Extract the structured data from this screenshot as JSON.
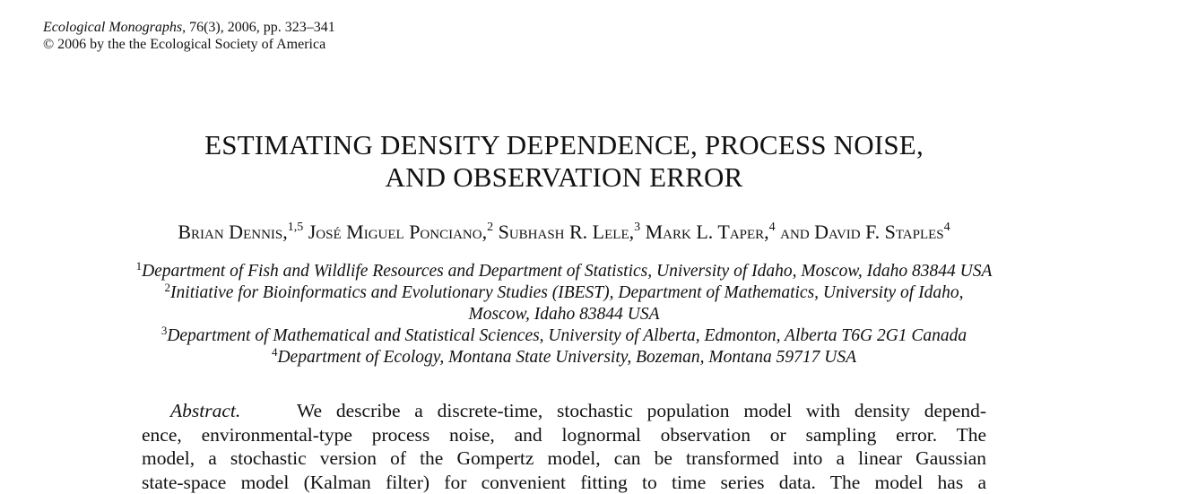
{
  "header": {
    "journal_name": "Ecological Monographs",
    "citation": ", 76(3), 2006, pp. 323–341",
    "copyright": "© 2006 by the the Ecological Society of America"
  },
  "title": {
    "line1": "ESTIMATING DENSITY DEPENDENCE, PROCESS NOISE,",
    "line2": "AND OBSERVATION ERROR"
  },
  "authors": [
    {
      "name": "Brian Dennis,",
      "sup": "1,5"
    },
    {
      "name": " José Miguel Ponciano,",
      "sup": "2"
    },
    {
      "name": " Subhash R. Lele,",
      "sup": "3"
    },
    {
      "name": " Mark L. Taper,",
      "sup": "4"
    },
    {
      "name": " and David F. Staples",
      "sup": "4"
    }
  ],
  "affiliations": [
    {
      "sup": "1",
      "text": "Department of Fish and Wildlife Resources and Department of Statistics, University of Idaho, Moscow, Idaho 83844 USA"
    },
    {
      "sup": "2",
      "text": "Initiative for Bioinformatics and Evolutionary Studies (IBEST), Department of Mathematics, University of Idaho,",
      "continuation": "Moscow, Idaho 83844 USA"
    },
    {
      "sup": "3",
      "text": "Department of Mathematical and Statistical Sciences, University of Alberta, Edmonton, Alberta T6G 2G1 Canada"
    },
    {
      "sup": "4",
      "text": "Department of Ecology, Montana State University, Bozeman, Montana 59717 USA"
    }
  ],
  "abstract": {
    "label": "Abstract.",
    "lines": [
      "We describe a discrete-time, stochastic population model with density depend-",
      "ence, environmental-type process noise, and lognormal observation or sampling error. The",
      "model, a stochastic version of the Gompertz model, can be transformed into a linear Gaussian",
      "state-space model (Kalman filter) for convenient fitting to time series data. The model has a"
    ]
  }
}
